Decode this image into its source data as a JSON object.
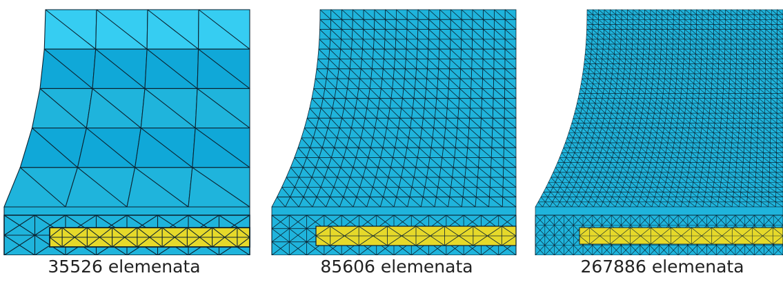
{
  "panels": [
    {
      "caption": "35526 elemenata",
      "mesh": "coarse"
    },
    {
      "caption": "85606 elemenata",
      "mesh": "medium"
    },
    {
      "caption": "267886 elemenata",
      "mesh": "fine"
    }
  ],
  "colors": {
    "mesh_fill": "#1fb4dc",
    "mesh_fill_light": "#36cdf2",
    "mesh_fill_mid": "#10a8d8",
    "mesh_lines": "#0b2230",
    "strip_fill": "#e6d92a"
  }
}
